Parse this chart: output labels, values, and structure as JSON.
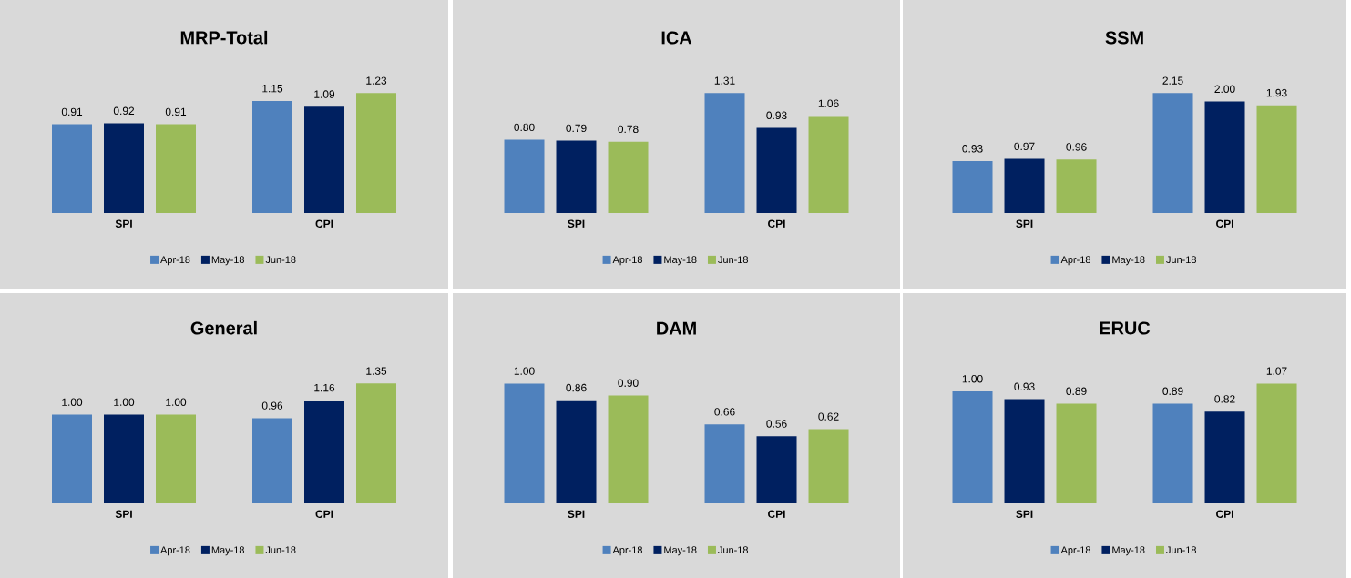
{
  "chart_data": [
    {
      "type": "bar",
      "title": "MRP-Total",
      "categories": [
        "SPI",
        "CPI"
      ],
      "legend": "bottom",
      "series": [
        {
          "name": "Apr-18",
          "color": "#4f81bd",
          "values": [
            0.91,
            1.15
          ],
          "value_labels": [
            "0.91",
            "1.15"
          ]
        },
        {
          "name": "May-18",
          "color": "#002060",
          "values": [
            0.92,
            1.09
          ],
          "value_labels": [
            "0.92",
            "1.09"
          ]
        },
        {
          "name": "Jun-18",
          "color": "#9bbb59",
          "values": [
            0.91,
            1.23
          ],
          "value_labels": [
            "0.91",
            "1.23"
          ]
        }
      ]
    },
    {
      "type": "bar",
      "title": "ICA",
      "categories": [
        "SPI",
        "CPI"
      ],
      "legend": "bottom",
      "series": [
        {
          "name": "Apr-18",
          "color": "#4f81bd",
          "values": [
            0.8,
            1.31
          ],
          "value_labels": [
            "0.80",
            "1.31"
          ]
        },
        {
          "name": "May-18",
          "color": "#002060",
          "values": [
            0.79,
            0.93
          ],
          "value_labels": [
            "0.79",
            "0.93"
          ]
        },
        {
          "name": "Jun-18",
          "color": "#9bbb59",
          "values": [
            0.78,
            1.06
          ],
          "value_labels": [
            "0.78",
            "1.06"
          ]
        }
      ]
    },
    {
      "type": "bar",
      "title": "SSM",
      "categories": [
        "SPI",
        "CPI"
      ],
      "legend": "bottom",
      "series": [
        {
          "name": "Apr-18",
          "color": "#4f81bd",
          "values": [
            0.93,
            2.15
          ],
          "value_labels": [
            "0.93",
            "2.15"
          ]
        },
        {
          "name": "May-18",
          "color": "#002060",
          "values": [
            0.97,
            2.0
          ],
          "value_labels": [
            "0.97",
            "2.00"
          ]
        },
        {
          "name": "Jun-18",
          "color": "#9bbb59",
          "values": [
            0.96,
            1.93
          ],
          "value_labels": [
            "0.96",
            "1.93"
          ]
        }
      ]
    },
    {
      "type": "bar",
      "title": "General",
      "categories": [
        "SPI",
        "CPI"
      ],
      "legend": "bottom",
      "series": [
        {
          "name": "Apr-18",
          "color": "#4f81bd",
          "values": [
            1.0,
            0.96
          ],
          "value_labels": [
            "1.00",
            "0.96"
          ]
        },
        {
          "name": "May-18",
          "color": "#002060",
          "values": [
            1.0,
            1.16
          ],
          "value_labels": [
            "1.00",
            "1.16"
          ]
        },
        {
          "name": "Jun-18",
          "color": "#9bbb59",
          "values": [
            1.0,
            1.35
          ],
          "value_labels": [
            "1.00",
            "1.35"
          ]
        }
      ]
    },
    {
      "type": "bar",
      "title": "DAM",
      "categories": [
        "SPI",
        "CPI"
      ],
      "legend": "bottom",
      "series": [
        {
          "name": "Apr-18",
          "color": "#4f81bd",
          "values": [
            1.0,
            0.66
          ],
          "value_labels": [
            "1.00",
            "0.66"
          ]
        },
        {
          "name": "May-18",
          "color": "#002060",
          "values": [
            0.86,
            0.56
          ],
          "value_labels": [
            "0.86",
            "0.56"
          ]
        },
        {
          "name": "Jun-18",
          "color": "#9bbb59",
          "values": [
            0.9,
            0.62
          ],
          "value_labels": [
            "0.90",
            "0.62"
          ]
        }
      ]
    },
    {
      "type": "bar",
      "title": "ERUC",
      "categories": [
        "SPI",
        "CPI"
      ],
      "legend": "bottom",
      "series": [
        {
          "name": "Apr-18",
          "color": "#4f81bd",
          "values": [
            1.0,
            0.89
          ],
          "value_labels": [
            "1.00",
            "0.89"
          ]
        },
        {
          "name": "May-18",
          "color": "#002060",
          "values": [
            0.93,
            0.82
          ],
          "value_labels": [
            "0.93",
            "0.82"
          ]
        },
        {
          "name": "Jun-18",
          "color": "#9bbb59",
          "values": [
            0.89,
            1.07
          ],
          "value_labels": [
            "0.89",
            "1.07"
          ]
        }
      ]
    }
  ]
}
